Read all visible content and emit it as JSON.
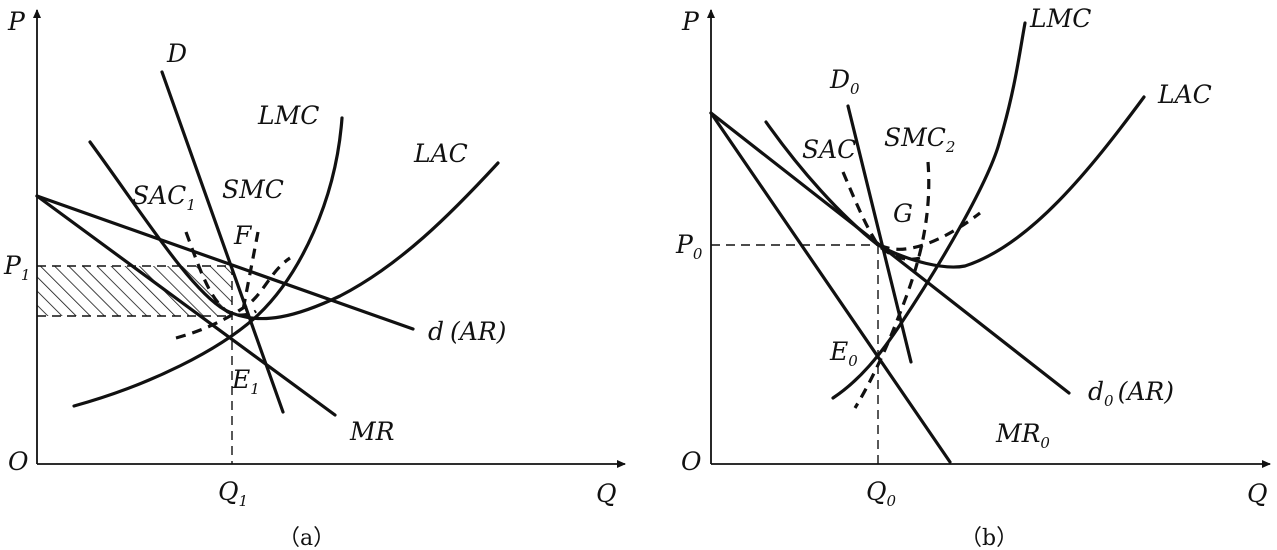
{
  "panel_a": {
    "caption": "（a）",
    "axis": {
      "y": "P",
      "x": "Q",
      "origin": "O"
    },
    "price": {
      "base": "P",
      "sub": "1"
    },
    "quantity": {
      "base": "Q",
      "sub": "1"
    },
    "curves": {
      "demand": "D",
      "lmc": "LMC",
      "lac": "LAC",
      "smc": "SMC",
      "sac": {
        "base": "SAC",
        "sub": "1"
      },
      "ar": {
        "base": "d",
        "paren": "(AR)"
      },
      "mr": "MR"
    },
    "points": {
      "f": "F",
      "e": {
        "base": "E",
        "sub": "1"
      }
    }
  },
  "panel_b": {
    "caption": "（b）",
    "axis": {
      "y": "P",
      "x": "Q",
      "origin": "O"
    },
    "price": {
      "base": "P",
      "sub": "0"
    },
    "quantity": {
      "base": "Q",
      "sub": "0"
    },
    "curves": {
      "demand": {
        "base": "D",
        "sub": "0"
      },
      "lmc": "LMC",
      "lac": "LAC",
      "sac": "SAC",
      "smc": {
        "base": "SMC",
        "sub": "2"
      },
      "ar": {
        "base": "d",
        "sub": "0",
        "paren": "(AR)"
      },
      "mr": {
        "base": "MR",
        "sub": "0"
      }
    },
    "points": {
      "g": "G",
      "e": {
        "base": "E",
        "sub": "0"
      }
    }
  }
}
